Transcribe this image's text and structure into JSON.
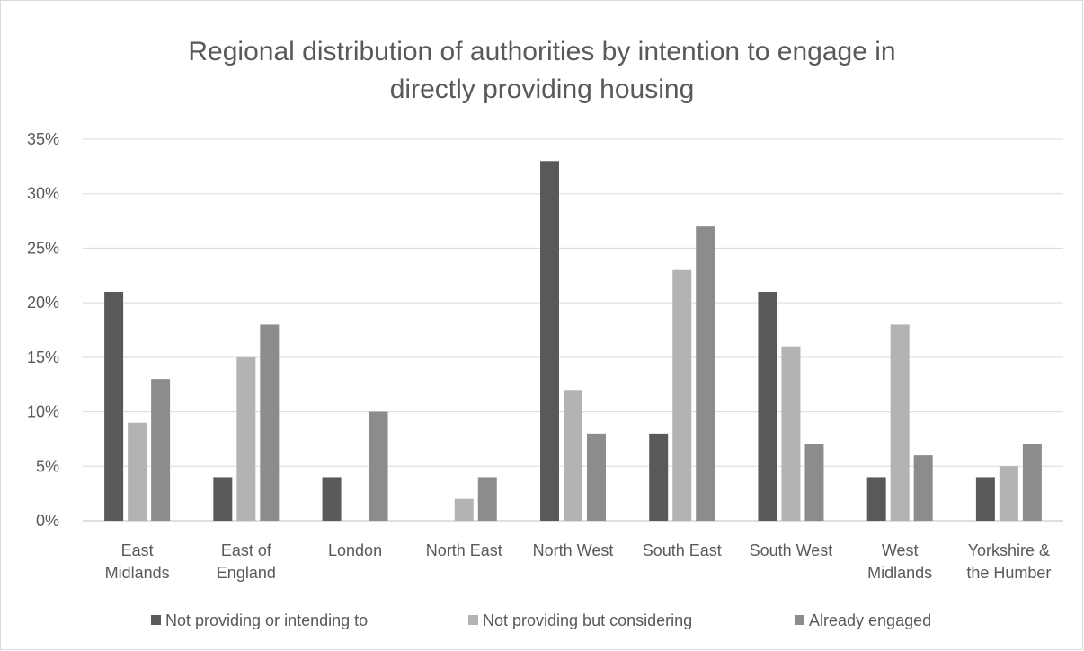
{
  "chart_data": {
    "type": "bar",
    "title": "Regional distribution of authorities by intention to engage in directly providing housing",
    "title_lines": [
      "Regional distribution of authorities by intention to engage in",
      "directly providing housing"
    ],
    "xlabel": "",
    "ylabel": "",
    "ylim": [
      0,
      35
    ],
    "yticks": [
      0,
      5,
      10,
      15,
      20,
      25,
      30,
      35
    ],
    "ytick_labels": [
      "0%",
      "5%",
      "10%",
      "15%",
      "20%",
      "25%",
      "30%",
      "35%"
    ],
    "grid": true,
    "legend_position": "bottom",
    "categories": [
      "East Midlands",
      "East of England",
      "London",
      "North East",
      "North West",
      "South East",
      "South West",
      "West Midlands",
      "Yorkshire & the Humber"
    ],
    "category_lines": [
      [
        "East",
        "Midlands"
      ],
      [
        "East of",
        "England"
      ],
      [
        "London"
      ],
      [
        "North East"
      ],
      [
        "North West"
      ],
      [
        "South East"
      ],
      [
        "South West"
      ],
      [
        "West",
        "Midlands"
      ],
      [
        "Yorkshire &",
        "the Humber"
      ]
    ],
    "series": [
      {
        "name": "Not providing or intending to",
        "color": "#595959",
        "values": [
          21,
          4,
          4,
          0,
          33,
          8,
          21,
          4,
          4
        ]
      },
      {
        "name": "Not providing but  considering",
        "color": "#b3b3b3",
        "values": [
          9,
          15,
          0,
          2,
          12,
          23,
          16,
          18,
          5
        ]
      },
      {
        "name": "Already engaged",
        "color": "#8c8c8c",
        "values": [
          13,
          18,
          10,
          4,
          8,
          27,
          7,
          6,
          7
        ]
      }
    ]
  }
}
